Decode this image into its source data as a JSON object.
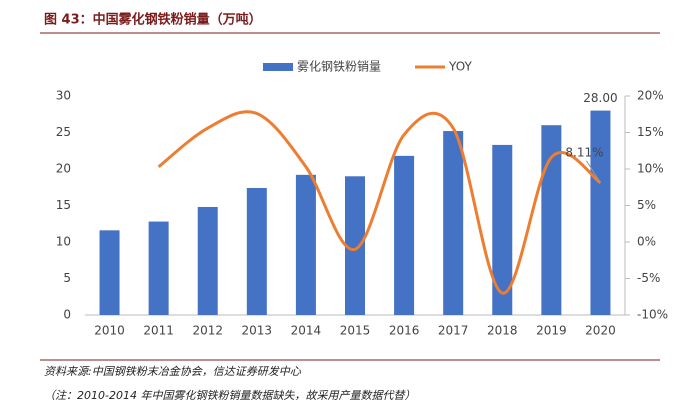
{
  "chart_data": {
    "type": "combo",
    "title": "图 43：中国雾化钢铁粉销量（万吨）",
    "source": "资料来源:中国钢铁粉末冶金协会，信达证券研发中心",
    "note": "（注：2010-2014 年中国雾化钢铁粉销量数据缺失，故采用产量数据代替）",
    "categories": [
      "2010",
      "2011",
      "2012",
      "2013",
      "2014",
      "2015",
      "2016",
      "2017",
      "2018",
      "2019",
      "2020"
    ],
    "series": [
      {
        "name": "雾化钢铁粉销量",
        "type": "bar",
        "color": "#4472c4",
        "values": [
          11.6,
          12.8,
          14.8,
          17.4,
          19.2,
          19.0,
          21.8,
          25.2,
          23.3,
          26.0,
          28.0
        ],
        "value_labels": [
          null,
          null,
          null,
          null,
          null,
          null,
          null,
          null,
          null,
          null,
          "28.00"
        ]
      },
      {
        "name": "YOY",
        "type": "line",
        "axis": "y2",
        "color": "#ed7d31",
        "values": [
          null,
          10.3,
          15.6,
          17.6,
          10.3,
          -1.0,
          14.7,
          15.6,
          -7.0,
          11.6,
          8.11
        ],
        "value_labels": [
          null,
          null,
          null,
          null,
          null,
          null,
          null,
          null,
          null,
          null,
          "8.11%"
        ]
      }
    ],
    "ylim": [
      0,
      30
    ],
    "yticks": [
      0,
      5,
      10,
      15,
      20,
      25,
      30
    ],
    "y2lim": [
      -10,
      20
    ],
    "y2ticks": [
      {
        "value": -10,
        "label": "-10%"
      },
      {
        "value": -5,
        "label": "-5%"
      },
      {
        "value": 0,
        "label": "0%"
      },
      {
        "value": 5,
        "label": "5%"
      },
      {
        "value": 10,
        "label": "10%"
      },
      {
        "value": 15,
        "label": "15%"
      },
      {
        "value": 20,
        "label": "20%"
      }
    ],
    "legend": "top"
  }
}
